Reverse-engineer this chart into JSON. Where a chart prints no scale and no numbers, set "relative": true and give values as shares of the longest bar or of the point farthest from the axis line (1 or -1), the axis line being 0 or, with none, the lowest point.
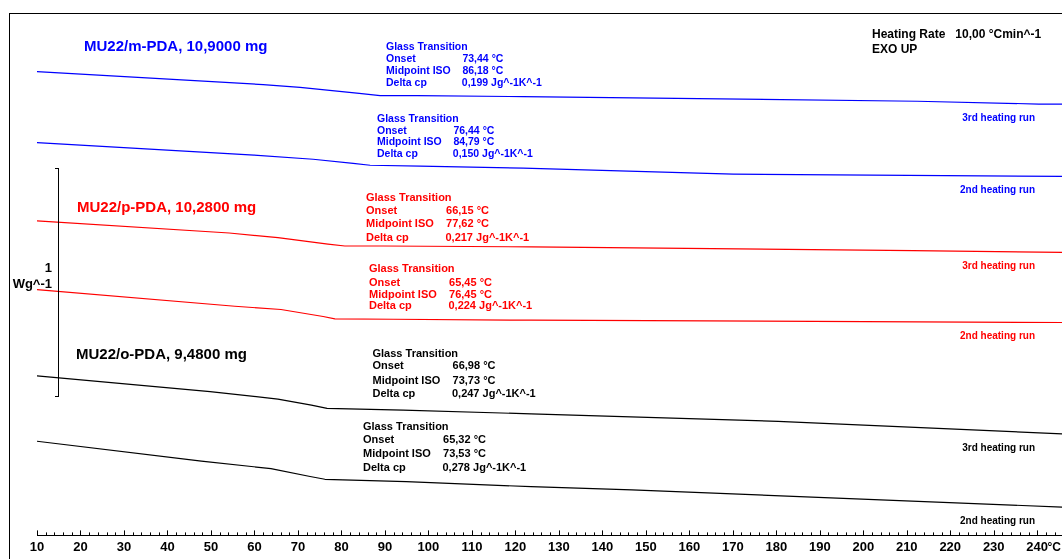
{
  "chart_data": {
    "type": "line",
    "relative": true,
    "xlabel": "°C",
    "ylabel": "1 Wg^-1",
    "xlim": [
      10,
      245.7
    ],
    "xticks": [
      10,
      {
        "value": 12,
        "label": null
      },
      {
        "value": 14,
        "label": null
      },
      {
        "value": 16,
        "label": null
      },
      {
        "value": 18,
        "label": null
      },
      20,
      {
        "value": 22,
        "label": null
      },
      {
        "value": 24,
        "label": null
      },
      {
        "value": 26,
        "label": null
      },
      {
        "value": 28,
        "label": null
      },
      30,
      {
        "value": 32,
        "label": null
      },
      {
        "value": 34,
        "label": null
      },
      {
        "value": 36,
        "label": null
      },
      {
        "value": 38,
        "label": null
      },
      40,
      {
        "value": 42,
        "label": null
      },
      {
        "value": 44,
        "label": null
      },
      {
        "value": 46,
        "label": null
      },
      {
        "value": 48,
        "label": null
      },
      50,
      {
        "value": 52,
        "label": null
      },
      {
        "value": 54,
        "label": null
      },
      {
        "value": 56,
        "label": null
      },
      {
        "value": 58,
        "label": null
      },
      60,
      {
        "value": 62,
        "label": null
      },
      {
        "value": 64,
        "label": null
      },
      {
        "value": 66,
        "label": null
      },
      {
        "value": 68,
        "label": null
      },
      70,
      {
        "value": 72,
        "label": null
      },
      {
        "value": 74,
        "label": null
      },
      {
        "value": 76,
        "label": null
      },
      {
        "value": 78,
        "label": null
      },
      80,
      {
        "value": 82,
        "label": null
      },
      {
        "value": 84,
        "label": null
      },
      {
        "value": 86,
        "label": null
      },
      {
        "value": 88,
        "label": null
      },
      90,
      {
        "value": 92,
        "label": null
      },
      {
        "value": 94,
        "label": null
      },
      {
        "value": 96,
        "label": null
      },
      {
        "value": 98,
        "label": null
      },
      100,
      {
        "value": 102,
        "label": null
      },
      {
        "value": 104,
        "label": null
      },
      {
        "value": 106,
        "label": null
      },
      {
        "value": 108,
        "label": null
      },
      110,
      {
        "value": 112,
        "label": null
      },
      {
        "value": 114,
        "label": null
      },
      {
        "value": 116,
        "label": null
      },
      {
        "value": 118,
        "label": null
      },
      120,
      {
        "value": 122,
        "label": null
      },
      {
        "value": 124,
        "label": null
      },
      {
        "value": 126,
        "label": null
      },
      {
        "value": 128,
        "label": null
      },
      130,
      {
        "value": 132,
        "label": null
      },
      {
        "value": 134,
        "label": null
      },
      {
        "value": 136,
        "label": null
      },
      {
        "value": 138,
        "label": null
      },
      140,
      {
        "value": 142,
        "label": null
      },
      {
        "value": 144,
        "label": null
      },
      {
        "value": 146,
        "label": null
      },
      {
        "value": 148,
        "label": null
      },
      150,
      {
        "value": 152,
        "label": null
      },
      {
        "value": 154,
        "label": null
      },
      {
        "value": 156,
        "label": null
      },
      {
        "value": 158,
        "label": null
      },
      160,
      {
        "value": 162,
        "label": null
      },
      {
        "value": 164,
        "label": null
      },
      {
        "value": 166,
        "label": null
      },
      {
        "value": 168,
        "label": null
      },
      170,
      {
        "value": 172,
        "label": null
      },
      {
        "value": 174,
        "label": null
      },
      {
        "value": 176,
        "label": null
      },
      {
        "value": 178,
        "label": null
      },
      180,
      {
        "value": 182,
        "label": null
      },
      {
        "value": 184,
        "label": null
      },
      {
        "value": 186,
        "label": null
      },
      {
        "value": 188,
        "label": null
      },
      190,
      {
        "value": 192,
        "label": null
      },
      {
        "value": 194,
        "label": null
      },
      {
        "value": 196,
        "label": null
      },
      {
        "value": 198,
        "label": null
      },
      200,
      {
        "value": 202,
        "label": null
      },
      {
        "value": 204,
        "label": null
      },
      {
        "value": 206,
        "label": null
      },
      {
        "value": 208,
        "label": null
      },
      210,
      {
        "value": 212,
        "label": null
      },
      {
        "value": 214,
        "label": null
      },
      {
        "value": 216,
        "label": null
      },
      {
        "value": 218,
        "label": null
      },
      220,
      {
        "value": 222,
        "label": null
      },
      {
        "value": 224,
        "label": null
      },
      {
        "value": 226,
        "label": null
      },
      {
        "value": 228,
        "label": null
      },
      230,
      {
        "value": 232,
        "label": null
      },
      {
        "value": 234,
        "label": null
      },
      {
        "value": 236,
        "label": null
      },
      {
        "value": 238,
        "label": null
      },
      240,
      {
        "value": 242,
        "label": null
      },
      {
        "value": 244,
        "label": null
      }
    ],
    "series": [
      {
        "name": "3rd heating run",
        "color": "#0000ff",
        "x": [
          10,
          62.0,
          70.5,
          84.1,
          88.9,
          97.4,
          121.8,
          212.4,
          240.4,
          245.7
        ],
        "values": [
          1,
          0.972,
          0.966,
          0.953,
          0.948,
          0.948,
          0.946,
          0.936,
          0.93,
          0.93
        ]
      },
      {
        "name": "2nd heating run",
        "color": "#0000ff",
        "x": [
          10,
          59.9,
          73.5,
          82.7,
          86.6,
          98.1,
          121.8,
          170.1,
          245.7
        ],
        "values": [
          0.847,
          0.82,
          0.811,
          0.802,
          0.798,
          0.796,
          0.792,
          0.779,
          0.774
        ]
      },
      {
        "name": "3rd heating run",
        "color": "#ff0000",
        "x": [
          10,
          54.2,
          65.4,
          76.9,
          80.8,
          89.6,
          123.6,
          211.5,
          245.7
        ],
        "values": [
          0.678,
          0.652,
          0.642,
          0.628,
          0.624,
          0.624,
          0.622,
          0.614,
          0.61
        ]
      },
      {
        "name": "2nd heating run",
        "color": "#ff0000",
        "x": [
          10,
          55.5,
          66.1,
          75.8,
          78.5,
          91.9,
          123.6,
          224.1,
          245.7
        ],
        "values": [
          0.53,
          0.494,
          0.487,
          0.472,
          0.467,
          0.466,
          0.464,
          0.46,
          0.459
        ]
      },
      {
        "name": "3rd heating run",
        "color": "#000000",
        "x": [
          10,
          49.8,
          65.4,
          73.1,
          76.7,
          94.2,
          123.6,
          180.4,
          245.7
        ],
        "values": [
          0.344,
          0.31,
          0.294,
          0.281,
          0.274,
          0.27,
          0.262,
          0.246,
          0.219
        ]
      },
      {
        "name": "2nd heating run",
        "color": "#000000",
        "x": [
          10,
          47.8,
          63.8,
          72.8,
          76.2,
          94.9,
          123.6,
          146.8,
          245.7
        ],
        "values": [
          0.203,
          0.16,
          0.144,
          0.127,
          0.121,
          0.116,
          0.105,
          0.098,
          0.061
        ]
      }
    ],
    "annotations": [
      "MU22/m-PDA, 10,9000 mg",
      "Glass Transition",
      "Onset\t73,44 °C",
      "Midpoint ISO\t86,18 °C",
      "Delta cp\t0,199 Jg^-1K^-1",
      "Glass Transition",
      "Onset\t76,44 °C",
      "Midpoint ISO\t84,79 °C",
      "Delta cp\t0,150 Jg^-1K^-1",
      "MU22/p-PDA, 10,2800 mg",
      "Glass Transition",
      "Onset\t66,15 °C",
      "Midpoint ISO\t77,62 °C",
      "Delta cp\t0,217 Jg^-1K^-1",
      "Glass Transition",
      "Onset\t65,45 °C",
      "Midpoint ISO\t76,45 °C",
      "Delta cp\t0,224 Jg^-1K^-1",
      "MU22/o-PDA, 9,4800 mg",
      "Glass Transition",
      "Onset\t66,98 °C",
      "Midpoint ISO\t73,73 °C",
      "Delta cp\t0,247 Jg^-1K^-1",
      "Glass Transition",
      "Onset\t65,32 °C",
      "Midpoint ISO\t73,53 °C",
      "Delta cp\t0,278 Jg^-1K^-1",
      "Heating Rate\t10,00 °Cmin^-1",
      "EXO UP"
    ]
  }
}
